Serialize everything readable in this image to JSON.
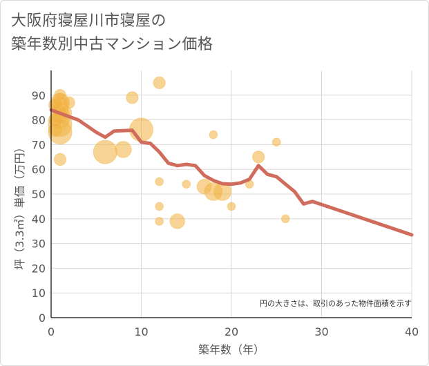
{
  "chart_data": {
    "type": "scatter",
    "title_lines": [
      "大阪府寝屋川市寝屋の",
      "築年数別中古マンション価格"
    ],
    "xlabel": "築年数（年）",
    "ylabel": "坪（3.3㎡）単価（万円）",
    "xlim": [
      0,
      40
    ],
    "ylim": [
      0,
      100
    ],
    "x_ticks": [
      0,
      10,
      20,
      30,
      40
    ],
    "y_ticks": [
      0,
      10,
      20,
      30,
      40,
      50,
      60,
      70,
      80,
      90
    ],
    "grid": true,
    "note": "円の大きさは、取引のあった物件面積を示す",
    "bubble_color": "#f0b040",
    "line_color": "#d06c5c",
    "bubbles": [
      {
        "x": 1,
        "y": 75,
        "size": 4
      },
      {
        "x": 1,
        "y": 78,
        "size": 4
      },
      {
        "x": 1,
        "y": 80,
        "size": 3
      },
      {
        "x": 1,
        "y": 82,
        "size": 3
      },
      {
        "x": 1,
        "y": 84,
        "size": 2.5
      },
      {
        "x": 1,
        "y": 86,
        "size": 2.5
      },
      {
        "x": 1,
        "y": 87,
        "size": 3
      },
      {
        "x": 1,
        "y": 88,
        "size": 2
      },
      {
        "x": 1,
        "y": 90,
        "size": 1.5
      },
      {
        "x": 0.5,
        "y": 86,
        "size": 2
      },
      {
        "x": 0.5,
        "y": 80,
        "size": 2
      },
      {
        "x": 0.5,
        "y": 76,
        "size": 2
      },
      {
        "x": 1.5,
        "y": 83,
        "size": 2
      },
      {
        "x": 2,
        "y": 87,
        "size": 1.5
      },
      {
        "x": 1,
        "y": 64,
        "size": 1.6
      },
      {
        "x": 6,
        "y": 67,
        "size": 4
      },
      {
        "x": 8,
        "y": 68,
        "size": 2.5
      },
      {
        "x": 9,
        "y": 89,
        "size": 1.6
      },
      {
        "x": 10,
        "y": 76,
        "size": 4
      },
      {
        "x": 12,
        "y": 95,
        "size": 1.6
      },
      {
        "x": 12,
        "y": 55,
        "size": 0.8
      },
      {
        "x": 12,
        "y": 45,
        "size": 0.8
      },
      {
        "x": 12,
        "y": 39,
        "size": 0.8
      },
      {
        "x": 14,
        "y": 39,
        "size": 2.2
      },
      {
        "x": 15,
        "y": 54,
        "size": 0.8
      },
      {
        "x": 17,
        "y": 53,
        "size": 2.2
      },
      {
        "x": 18,
        "y": 51,
        "size": 2.8
      },
      {
        "x": 18,
        "y": 74,
        "size": 0.8
      },
      {
        "x": 19,
        "y": 51,
        "size": 2.8
      },
      {
        "x": 20,
        "y": 45,
        "size": 0.8
      },
      {
        "x": 22,
        "y": 54,
        "size": 0.8
      },
      {
        "x": 23,
        "y": 65,
        "size": 1.6
      },
      {
        "x": 25,
        "y": 71,
        "size": 0.8
      },
      {
        "x": 26,
        "y": 40,
        "size": 0.8
      }
    ],
    "trend": [
      {
        "x": 0,
        "y": 84
      },
      {
        "x": 3,
        "y": 80
      },
      {
        "x": 5,
        "y": 75
      },
      {
        "x": 6,
        "y": 73
      },
      {
        "x": 7,
        "y": 75.5
      },
      {
        "x": 9,
        "y": 75.8
      },
      {
        "x": 10,
        "y": 71
      },
      {
        "x": 11,
        "y": 70.5
      },
      {
        "x": 12,
        "y": 67
      },
      {
        "x": 13,
        "y": 62.5
      },
      {
        "x": 14,
        "y": 61.5
      },
      {
        "x": 15,
        "y": 62
      },
      {
        "x": 16,
        "y": 61.5
      },
      {
        "x": 17,
        "y": 57.5
      },
      {
        "x": 18,
        "y": 55.5
      },
      {
        "x": 19,
        "y": 54.2
      },
      {
        "x": 20,
        "y": 54
      },
      {
        "x": 21,
        "y": 54.5
      },
      {
        "x": 22,
        "y": 56
      },
      {
        "x": 23,
        "y": 61.5
      },
      {
        "x": 24,
        "y": 58
      },
      {
        "x": 25,
        "y": 57
      },
      {
        "x": 26,
        "y": 54
      },
      {
        "x": 27,
        "y": 51
      },
      {
        "x": 28,
        "y": 46
      },
      {
        "x": 29,
        "y": 47
      },
      {
        "x": 40,
        "y": 33.5
      }
    ]
  }
}
